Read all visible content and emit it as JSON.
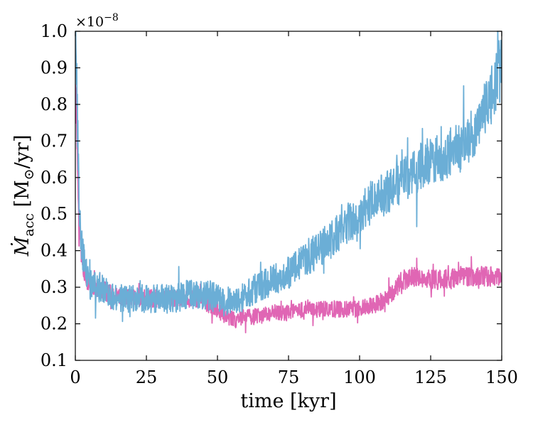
{
  "chart_data": {
    "type": "line",
    "xlabel": "time [kyr]",
    "ylabel_parts": {
      "symbol": "Ṁ",
      "subscript": "acc",
      "unit_open": " [M",
      "unit_sub": "⊙",
      "unit_close": "/yr]"
    },
    "offset_text": {
      "base": "×10",
      "exponent": "−8"
    },
    "xlim": [
      0,
      150
    ],
    "ylim": [
      0.1,
      1.0
    ],
    "y_scale_factor": 1e-08,
    "grid": false,
    "legend": "none",
    "x_ticks": [
      0,
      25,
      50,
      75,
      100,
      125,
      150
    ],
    "x_tick_labels": [
      "0",
      "25",
      "50",
      "75",
      "100",
      "125",
      "150"
    ],
    "y_ticks": [
      0.1,
      0.2,
      0.3,
      0.4,
      0.5,
      0.6,
      0.7,
      0.8,
      0.9,
      1.0
    ],
    "y_tick_labels": [
      "0.1",
      "0.2",
      "0.3",
      "0.4",
      "0.5",
      "0.6",
      "0.7",
      "0.8",
      "0.9",
      "1.0"
    ],
    "series": [
      {
        "color": "#e066b4",
        "noise": 0.028,
        "x": [
          0,
          0.5,
          1,
          1.5,
          2,
          3,
          4,
          5,
          7,
          10,
          13,
          15,
          20,
          25,
          30,
          35,
          40,
          45,
          50,
          53,
          56,
          60,
          65,
          70,
          75,
          80,
          85,
          90,
          95,
          100,
          105,
          110,
          113,
          115,
          120,
          125,
          130,
          135,
          140,
          145,
          150
        ],
        "y": [
          0.9,
          0.75,
          0.55,
          0.47,
          0.4,
          0.35,
          0.32,
          0.31,
          0.3,
          0.29,
          0.28,
          0.27,
          0.27,
          0.27,
          0.27,
          0.27,
          0.27,
          0.26,
          0.24,
          0.22,
          0.21,
          0.22,
          0.22,
          0.23,
          0.23,
          0.24,
          0.24,
          0.24,
          0.24,
          0.24,
          0.25,
          0.27,
          0.3,
          0.32,
          0.33,
          0.32,
          0.32,
          0.33,
          0.33,
          0.33,
          0.33
        ]
      },
      {
        "color": "#6baed6",
        "noise": 0.045,
        "x": [
          0,
          0.5,
          1,
          1.5,
          2,
          3,
          4,
          5,
          7,
          10,
          13,
          15,
          20,
          25,
          30,
          35,
          40,
          45,
          50,
          55,
          60,
          65,
          70,
          75,
          80,
          85,
          90,
          95,
          100,
          105,
          110,
          115,
          120,
          125,
          130,
          135,
          140,
          145,
          150
        ],
        "y": [
          1.0,
          0.85,
          0.65,
          0.5,
          0.42,
          0.37,
          0.33,
          0.31,
          0.3,
          0.3,
          0.28,
          0.27,
          0.27,
          0.27,
          0.27,
          0.27,
          0.28,
          0.28,
          0.27,
          0.26,
          0.28,
          0.3,
          0.32,
          0.34,
          0.37,
          0.4,
          0.43,
          0.47,
          0.5,
          0.54,
          0.56,
          0.59,
          0.62,
          0.65,
          0.66,
          0.68,
          0.72,
          0.8,
          0.9
        ]
      }
    ]
  }
}
